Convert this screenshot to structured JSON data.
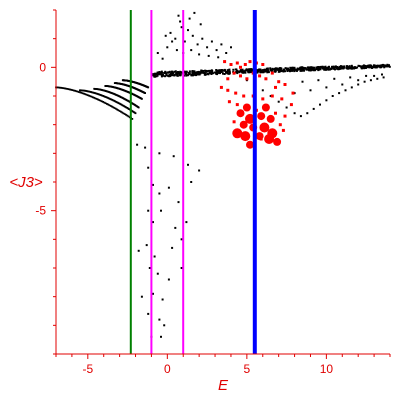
{
  "chart_data": {
    "type": "scatter",
    "title": "",
    "xlabel": "E",
    "ylabel": "<J3>",
    "xlim": [
      -7,
      14
    ],
    "ylim": [
      -10,
      2
    ],
    "x_ticks": [
      -5,
      0,
      5,
      10
    ],
    "y_ticks": [
      0,
      -5
    ],
    "grid": false,
    "legend": "none",
    "colors": {
      "axes": "#e00000",
      "black_points": "#000000",
      "red_points": "#ff0000",
      "green_line": "#008000",
      "magenta_line": "#ff00ff",
      "blue_line": "#0000ff"
    },
    "vertical_lines": [
      {
        "x": -2.3,
        "color": "#008000",
        "width": "thin"
      },
      {
        "x": -1.0,
        "color": "#ff00ff",
        "width": "thin"
      },
      {
        "x": 1.0,
        "color": "#ff00ff",
        "width": "thin"
      },
      {
        "x": 5.5,
        "color": "#0000ff",
        "width": "thick"
      }
    ],
    "black_branches": [
      {
        "x_start": -7.0,
        "x_end": -2.2,
        "y_start": -0.7,
        "y_end": -1.8
      },
      {
        "x_start": -5.5,
        "x_end": -2.0,
        "y_start": -0.8,
        "y_end": -1.6
      },
      {
        "x_start": -4.6,
        "x_end": -1.8,
        "y_start": -0.75,
        "y_end": -1.4
      },
      {
        "x_start": -3.9,
        "x_end": -1.6,
        "y_start": -0.65,
        "y_end": -1.1
      },
      {
        "x_start": -3.3,
        "x_end": -1.4,
        "y_start": -0.55,
        "y_end": -0.9
      },
      {
        "x_start": -2.8,
        "x_end": -1.2,
        "y_start": -0.45,
        "y_end": -0.7
      }
    ],
    "black_band": {
      "x_start": -1.0,
      "x_end": 14.0,
      "y_left": -0.25,
      "y_right": 0.05
    },
    "black_scatter": [
      [
        0.2,
        1.2
      ],
      [
        0.5,
        1.0
      ],
      [
        0.8,
        1.6
      ],
      [
        1.1,
        0.9
      ],
      [
        1.3,
        1.3
      ],
      [
        1.6,
        1.1
      ],
      [
        1.9,
        0.8
      ],
      [
        2.2,
        1.0
      ],
      [
        2.5,
        0.7
      ],
      [
        2.8,
        0.9
      ],
      [
        3.1,
        0.6
      ],
      [
        3.4,
        0.8
      ],
      [
        3.7,
        0.5
      ],
      [
        4.0,
        0.7
      ],
      [
        0.6,
        0.6
      ],
      [
        1.0,
        0.5
      ],
      [
        1.5,
        0.6
      ],
      [
        2.0,
        0.45
      ],
      [
        2.6,
        0.4
      ],
      [
        3.2,
        0.35
      ],
      [
        0.3,
        0.9
      ],
      [
        0.9,
        1.4
      ],
      [
        1.4,
        1.7
      ],
      [
        2.1,
        1.5
      ],
      [
        -0.6,
        0.5
      ],
      [
        -0.3,
        0.3
      ],
      [
        0.0,
        0.7
      ],
      [
        -0.1,
        1.1
      ],
      [
        1.7,
        1.9
      ],
      [
        0.7,
        1.8
      ],
      [
        -1.9,
        -2.7
      ],
      [
        -1.4,
        -2.8
      ],
      [
        -0.5,
        -3.0
      ],
      [
        0.4,
        -3.1
      ],
      [
        1.3,
        -3.4
      ],
      [
        2.0,
        -3.6
      ],
      [
        -1.2,
        -3.5
      ],
      [
        -0.9,
        -4.1
      ],
      [
        -0.5,
        -4.4
      ],
      [
        0.1,
        -4.2
      ],
      [
        0.7,
        -4.7
      ],
      [
        1.5,
        -4.0
      ],
      [
        -1.2,
        -5.0
      ],
      [
        -0.9,
        -5.4
      ],
      [
        -0.4,
        -5.0
      ],
      [
        0.5,
        -5.6
      ],
      [
        0.9,
        -6.0
      ],
      [
        -1.3,
        -6.2
      ],
      [
        -0.8,
        -6.6
      ],
      [
        0.3,
        -6.3
      ],
      [
        1.2,
        -5.4
      ],
      [
        -1.1,
        -7.0
      ],
      [
        -0.6,
        -7.2
      ],
      [
        0.1,
        -7.4
      ],
      [
        -0.9,
        -7.9
      ],
      [
        -0.3,
        -8.1
      ],
      [
        -1.2,
        -8.6
      ],
      [
        -0.5,
        -8.8
      ],
      [
        -1.0,
        -9.4
      ],
      [
        -0.4,
        -9.4
      ],
      [
        -1.8,
        -6.4
      ],
      [
        -1.6,
        -8.0
      ],
      [
        -0.2,
        -9.0
      ],
      [
        0.9,
        -7.0
      ],
      [
        4.4,
        -0.2
      ],
      [
        5.0,
        -0.45
      ],
      [
        5.5,
        -0.6
      ],
      [
        6.0,
        -0.8
      ],
      [
        6.5,
        -1.0
      ],
      [
        7.0,
        -1.2
      ],
      [
        7.5,
        -1.4
      ],
      [
        8.0,
        -1.6
      ],
      [
        8.4,
        -1.7
      ],
      [
        8.8,
        -1.6
      ],
      [
        9.2,
        -1.45
      ],
      [
        9.6,
        -1.3
      ],
      [
        10.0,
        -1.15
      ],
      [
        10.4,
        -1.0
      ],
      [
        10.8,
        -0.9
      ],
      [
        11.2,
        -0.8
      ],
      [
        11.6,
        -0.7
      ],
      [
        12.0,
        -0.6
      ],
      [
        12.4,
        -0.5
      ],
      [
        12.8,
        -0.45
      ],
      [
        13.2,
        -0.4
      ],
      [
        13.6,
        -0.35
      ],
      [
        9.0,
        -0.8
      ],
      [
        10.0,
        -0.7
      ],
      [
        11.0,
        -0.6
      ],
      [
        12.0,
        -0.45
      ],
      [
        13.0,
        -0.3
      ],
      [
        8.0,
        -0.9
      ],
      [
        8.5,
        -0.5
      ],
      [
        9.5,
        -0.45
      ],
      [
        10.5,
        -0.4
      ],
      [
        11.5,
        -0.35
      ],
      [
        12.5,
        -0.3
      ],
      [
        13.5,
        -0.25
      ]
    ],
    "red_points": [
      [
        3.6,
        0.2,
        3
      ],
      [
        4.0,
        0.1,
        3
      ],
      [
        4.4,
        0.15,
        3
      ],
      [
        4.6,
        0.0,
        3
      ],
      [
        4.9,
        0.1,
        3
      ],
      [
        5.2,
        0.2,
        3
      ],
      [
        5.6,
        0.15,
        3
      ],
      [
        6.0,
        0.1,
        3
      ],
      [
        4.2,
        -0.2,
        3
      ],
      [
        4.6,
        -0.3,
        3
      ],
      [
        5.0,
        -0.4,
        3
      ],
      [
        5.4,
        -0.2,
        3
      ],
      [
        5.8,
        -0.3,
        3
      ],
      [
        6.2,
        -0.4,
        3
      ],
      [
        6.6,
        -0.2,
        3
      ],
      [
        7.0,
        -0.5,
        3
      ],
      [
        7.4,
        -0.6,
        3
      ],
      [
        3.4,
        -0.7,
        3
      ],
      [
        3.8,
        -0.8,
        3
      ],
      [
        4.3,
        -0.9,
        3
      ],
      [
        4.8,
        -1.0,
        3
      ],
      [
        5.4,
        -1.0,
        3
      ],
      [
        6.0,
        -1.1,
        3
      ],
      [
        6.6,
        -1.0,
        3
      ],
      [
        7.2,
        -1.1,
        3
      ],
      [
        3.9,
        -1.2,
        3
      ],
      [
        4.4,
        -1.3,
        3
      ],
      [
        5.0,
        -1.4,
        4
      ],
      [
        5.6,
        -1.5,
        3
      ],
      [
        6.2,
        -1.4,
        4
      ],
      [
        6.8,
        -1.6,
        3
      ],
      [
        7.4,
        -1.7,
        3
      ],
      [
        4.6,
        -1.6,
        4
      ],
      [
        5.2,
        -1.8,
        5
      ],
      [
        5.9,
        -1.7,
        4
      ],
      [
        6.5,
        -1.8,
        4
      ],
      [
        7.1,
        -2.0,
        3
      ],
      [
        4.2,
        -1.9,
        3
      ],
      [
        4.8,
        -2.0,
        4
      ],
      [
        5.4,
        -2.1,
        4
      ],
      [
        6.1,
        -2.1,
        5
      ],
      [
        6.6,
        -2.3,
        5
      ],
      [
        7.3,
        -2.2,
        3
      ],
      [
        4.4,
        -2.3,
        5
      ],
      [
        4.9,
        -2.4,
        5
      ],
      [
        5.8,
        -2.4,
        4
      ],
      [
        6.4,
        -2.5,
        5
      ],
      [
        6.9,
        -2.6,
        4
      ],
      [
        5.2,
        -2.7,
        4
      ],
      [
        5.9,
        -2.5,
        3
      ],
      [
        3.8,
        -0.4,
        3
      ],
      [
        6.8,
        -0.7,
        3
      ],
      [
        7.8,
        -1.3,
        3
      ],
      [
        7.9,
        -0.9,
        3
      ]
    ]
  }
}
